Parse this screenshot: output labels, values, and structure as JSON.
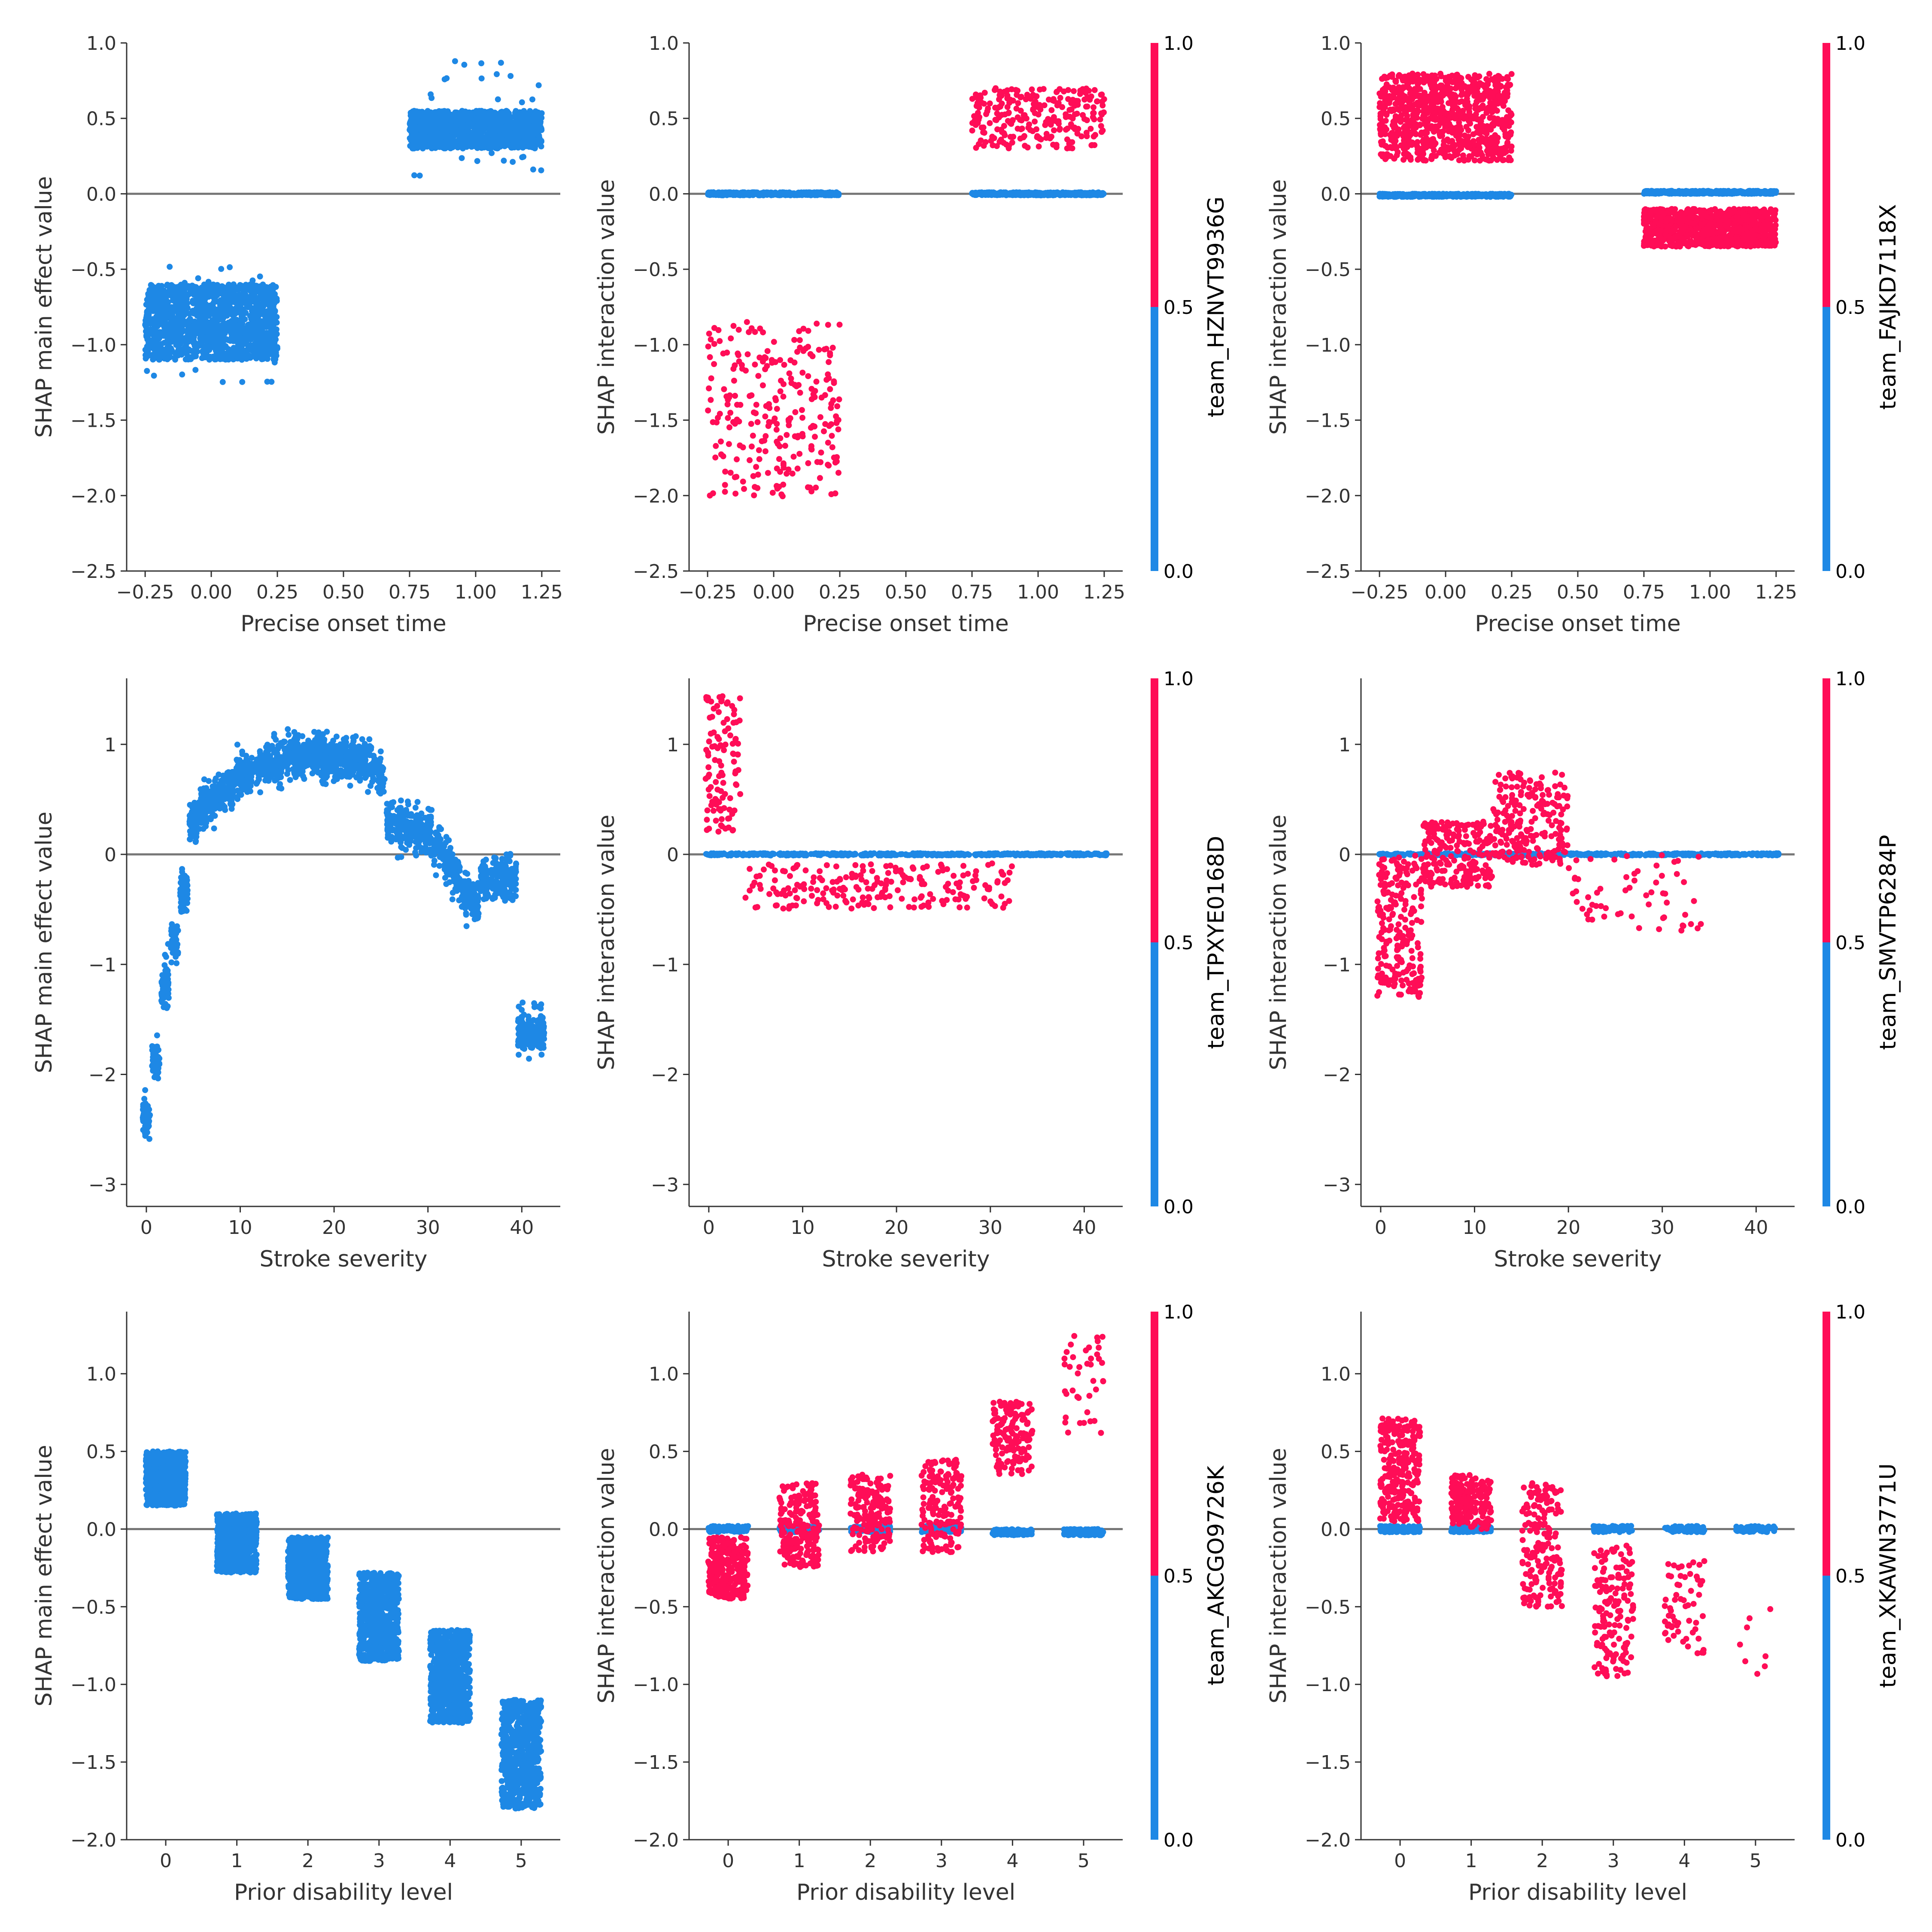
{
  "colors": {
    "low": "#1E88E5",
    "high": "#FF0D57",
    "zero_line": "#777777",
    "spine": "#333333"
  },
  "chart_data": [
    {
      "type": "scatter",
      "xlabel": "Precise onset time",
      "ylabel": "SHAP main effect value",
      "xlim": [
        -0.32,
        1.32
      ],
      "ylim": [
        -2.5,
        1.0
      ],
      "xticks": [
        -0.25,
        0.0,
        0.25,
        0.5,
        0.75,
        1.0,
        1.25
      ],
      "xtick_labels": [
        "−0.25",
        "0.00",
        "0.25",
        "0.50",
        "0.75",
        "1.00",
        "1.25"
      ],
      "yticks": [
        -2.5,
        -2.0,
        -1.5,
        -1.0,
        -0.5,
        0.0,
        0.5,
        1.0
      ],
      "ytick_labels": [
        "−2.5",
        "−2.0",
        "−1.5",
        "−1.0",
        "−0.5",
        "0.0",
        "0.5",
        "1.0"
      ],
      "colorbar": null,
      "clusters": [
        {
          "x": [
            -0.25,
            0.25
          ],
          "y": [
            -1.1,
            -0.6
          ],
          "color": "low",
          "n": 1400
        },
        {
          "x": [
            -0.25,
            0.25
          ],
          "y": [
            -1.25,
            -0.48
          ],
          "color": "low",
          "n": 60
        },
        {
          "x": [
            0.75,
            1.25
          ],
          "y": [
            0.3,
            0.55
          ],
          "color": "low",
          "n": 1200
        },
        {
          "x": [
            0.75,
            1.25
          ],
          "y": [
            0.12,
            0.88
          ],
          "color": "low",
          "n": 40
        }
      ]
    },
    {
      "type": "scatter",
      "xlabel": "Precise onset time",
      "ylabel": "SHAP interaction value",
      "xlim": [
        -0.32,
        1.32
      ],
      "ylim": [
        -2.5,
        1.0
      ],
      "xticks": [
        -0.25,
        0.0,
        0.25,
        0.5,
        0.75,
        1.0,
        1.25
      ],
      "xtick_labels": [
        "−0.25",
        "0.00",
        "0.25",
        "0.50",
        "0.75",
        "1.00",
        "1.25"
      ],
      "yticks": [
        -2.5,
        -2.0,
        -1.5,
        -1.0,
        -0.5,
        0.0,
        0.5,
        1.0
      ],
      "ytick_labels": [
        "−2.5",
        "−2.0",
        "−1.5",
        "−1.0",
        "−0.5",
        "0.0",
        "0.5",
        "1.0"
      ],
      "colorbar": {
        "label": "team_HZNVT9936G",
        "ticks": [
          "0.0",
          "0.5",
          "1.0"
        ]
      },
      "clusters": [
        {
          "x": [
            -0.25,
            0.25
          ],
          "y": [
            -0.01,
            0.01
          ],
          "color": "low",
          "n": 400
        },
        {
          "x": [
            0.75,
            1.25
          ],
          "y": [
            -0.01,
            0.01
          ],
          "color": "low",
          "n": 400
        },
        {
          "x": [
            -0.25,
            0.25
          ],
          "y": [
            -2.02,
            -0.85
          ],
          "color": "high",
          "n": 260
        },
        {
          "x": [
            0.75,
            1.25
          ],
          "y": [
            0.3,
            0.7
          ],
          "color": "high",
          "n": 260
        }
      ]
    },
    {
      "type": "scatter",
      "xlabel": "Precise onset time",
      "ylabel": "SHAP interaction value",
      "xlim": [
        -0.32,
        1.32
      ],
      "ylim": [
        -2.5,
        1.0
      ],
      "xticks": [
        -0.25,
        0.0,
        0.25,
        0.5,
        0.75,
        1.0,
        1.25
      ],
      "xtick_labels": [
        "−0.25",
        "0.00",
        "0.25",
        "0.50",
        "0.75",
        "1.00",
        "1.25"
      ],
      "yticks": [
        -2.5,
        -2.0,
        -1.5,
        -1.0,
        -0.5,
        0.0,
        0.5,
        1.0
      ],
      "ytick_labels": [
        "−2.5",
        "−2.0",
        "−1.5",
        "−1.0",
        "−0.5",
        "0.0",
        "0.5",
        "1.0"
      ],
      "colorbar": {
        "label": "team_FAJKD7118X",
        "ticks": [
          "0.0",
          "0.5",
          "1.0"
        ]
      },
      "clusters": [
        {
          "x": [
            -0.25,
            0.25
          ],
          "y": [
            -0.02,
            0.0
          ],
          "color": "low",
          "n": 400
        },
        {
          "x": [
            0.75,
            1.25
          ],
          "y": [
            0.0,
            0.02
          ],
          "color": "low",
          "n": 400
        },
        {
          "x": [
            -0.25,
            0.25
          ],
          "y": [
            0.22,
            0.8
          ],
          "color": "high",
          "n": 900
        },
        {
          "x": [
            0.75,
            1.25
          ],
          "y": [
            -0.35,
            -0.1
          ],
          "color": "high",
          "n": 900
        }
      ]
    },
    {
      "type": "scatter",
      "xlabel": "Stroke severity",
      "ylabel": "SHAP main effect value",
      "xlim": [
        -2.1,
        44.1
      ],
      "ylim": [
        -3.2,
        1.6
      ],
      "xticks": [
        0,
        10,
        20,
        30,
        40
      ],
      "xtick_labels": [
        "0",
        "10",
        "20",
        "30",
        "40"
      ],
      "yticks": [
        -3,
        -2,
        -1,
        0,
        1
      ],
      "ytick_labels": [
        "−3",
        "−2",
        "−1",
        "0",
        "1"
      ],
      "colorbar": null,
      "curve": {
        "x": [
          0,
          1,
          2,
          3,
          4,
          5,
          6,
          8,
          10,
          12,
          14,
          16,
          18,
          20,
          22,
          24,
          25,
          26,
          28,
          30,
          32,
          33,
          34,
          35,
          36,
          38,
          39,
          40,
          41,
          42
        ],
        "y": [
          -2.4,
          -1.9,
          -1.2,
          -0.8,
          -0.35,
          0.3,
          0.45,
          0.55,
          0.7,
          0.78,
          0.85,
          0.88,
          0.9,
          0.88,
          0.85,
          0.8,
          0.7,
          0.3,
          0.25,
          0.2,
          -0.05,
          -0.2,
          -0.4,
          -0.45,
          -0.25,
          -0.2,
          -0.2,
          -1.6,
          -1.6,
          -1.6
        ],
        "spread": 0.15,
        "color": "low",
        "n": 2600
      }
    },
    {
      "type": "scatter",
      "xlabel": "Stroke severity",
      "ylabel": "SHAP interaction value",
      "xlim": [
        -2.1,
        44.1
      ],
      "ylim": [
        -3.2,
        1.6
      ],
      "xticks": [
        0,
        10,
        20,
        30,
        40
      ],
      "xtick_labels": [
        "0",
        "10",
        "20",
        "30",
        "40"
      ],
      "yticks": [
        -3,
        -2,
        -1,
        0,
        1
      ],
      "ytick_labels": [
        "−3",
        "−2",
        "−1",
        "0",
        "1"
      ],
      "colorbar": {
        "label": "team_TPXYE0168D",
        "ticks": [
          "0.0",
          "0.5",
          "1.0"
        ]
      },
      "clusters": [
        {
          "x": [
            -0.4,
            42.4
          ],
          "y": [
            -0.01,
            0.01
          ],
          "color": "low",
          "n": 500
        },
        {
          "x": [
            -0.4,
            3.4
          ],
          "y": [
            0.2,
            1.45
          ],
          "color": "high",
          "n": 110
        },
        {
          "x": [
            3.6,
            32.4
          ],
          "y": [
            -0.5,
            -0.08
          ],
          "color": "high",
          "n": 220
        }
      ]
    },
    {
      "type": "scatter",
      "xlabel": "Stroke severity",
      "ylabel": "SHAP interaction value",
      "xlim": [
        -2.1,
        44.1
      ],
      "ylim": [
        -3.2,
        1.6
      ],
      "xticks": [
        0,
        10,
        20,
        30,
        40
      ],
      "xtick_labels": [
        "0",
        "10",
        "20",
        "30",
        "40"
      ],
      "yticks": [
        -3,
        -2,
        -1,
        0,
        1
      ],
      "ytick_labels": [
        "−3",
        "−2",
        "−1",
        "0",
        "1"
      ],
      "colorbar": {
        "label": "team_SMVTP6284P",
        "ticks": [
          "0.0",
          "0.5",
          "1.0"
        ]
      },
      "clusters": [
        {
          "x": [
            -0.4,
            42.4
          ],
          "y": [
            -0.01,
            0.01
          ],
          "color": "low",
          "n": 500
        },
        {
          "x": [
            -0.4,
            4.4
          ],
          "y": [
            -1.3,
            0.0
          ],
          "color": "high",
          "n": 220
        },
        {
          "x": [
            4.5,
            12.0
          ],
          "y": [
            -0.3,
            0.3
          ],
          "color": "high",
          "n": 220
        },
        {
          "x": [
            12.0,
            20.0
          ],
          "y": [
            -0.1,
            0.75
          ],
          "color": "high",
          "n": 220
        },
        {
          "x": [
            20.0,
            34.5
          ],
          "y": [
            -0.7,
            0.0
          ],
          "color": "high",
          "n": 60
        }
      ]
    },
    {
      "type": "scatter",
      "xlabel": "Prior disability level",
      "ylabel": "SHAP main effect value",
      "xlim": [
        -0.55,
        5.55
      ],
      "ylim": [
        -2.0,
        1.4
      ],
      "xticks": [
        0,
        1,
        2,
        3,
        4,
        5
      ],
      "xtick_labels": [
        "0",
        "1",
        "2",
        "3",
        "4",
        "5"
      ],
      "yticks": [
        -2.0,
        -1.5,
        -1.0,
        -0.5,
        0.0,
        0.5,
        1.0
      ],
      "ytick_labels": [
        "−2.0",
        "−1.5",
        "−1.0",
        "−0.5",
        "0.0",
        "0.5",
        "1.0"
      ],
      "colorbar": null,
      "clusters": [
        {
          "x": [
            -0.28,
            0.28
          ],
          "y": [
            0.15,
            0.5
          ],
          "color": "low",
          "n": 700
        },
        {
          "x": [
            0.72,
            1.28
          ],
          "y": [
            -0.28,
            0.1
          ],
          "color": "low",
          "n": 700
        },
        {
          "x": [
            1.72,
            2.28
          ],
          "y": [
            -0.45,
            -0.05
          ],
          "color": "low",
          "n": 700
        },
        {
          "x": [
            2.72,
            3.28
          ],
          "y": [
            -0.85,
            -0.28
          ],
          "color": "low",
          "n": 700
        },
        {
          "x": [
            3.72,
            4.28
          ],
          "y": [
            -1.25,
            -0.65
          ],
          "color": "low",
          "n": 700
        },
        {
          "x": [
            4.72,
            5.28
          ],
          "y": [
            -1.8,
            -1.1
          ],
          "color": "low",
          "n": 700
        }
      ]
    },
    {
      "type": "scatter",
      "xlabel": "Prior disability level",
      "ylabel": "SHAP interaction value",
      "xlim": [
        -0.55,
        5.55
      ],
      "ylim": [
        -2.0,
        1.4
      ],
      "xticks": [
        0,
        1,
        2,
        3,
        4,
        5
      ],
      "xtick_labels": [
        "0",
        "1",
        "2",
        "3",
        "4",
        "5"
      ],
      "yticks": [
        -2.0,
        -1.5,
        -1.0,
        -0.5,
        0.0,
        0.5,
        1.0
      ],
      "ytick_labels": [
        "−2.0",
        "−1.5",
        "−1.0",
        "−0.5",
        "0.0",
        "0.5",
        "1.0"
      ],
      "colorbar": {
        "label": "team_AKCGO9726K",
        "ticks": [
          "0.0",
          "0.5",
          "1.0"
        ]
      },
      "clusters": [
        {
          "x": [
            -0.28,
            0.28
          ],
          "y": [
            -0.02,
            0.02
          ],
          "color": "low",
          "n": 120
        },
        {
          "x": [
            0.72,
            1.28
          ],
          "y": [
            -0.02,
            0.02
          ],
          "color": "low",
          "n": 120
        },
        {
          "x": [
            1.72,
            2.28
          ],
          "y": [
            -0.02,
            0.02
          ],
          "color": "low",
          "n": 120
        },
        {
          "x": [
            2.72,
            3.28
          ],
          "y": [
            -0.02,
            0.02
          ],
          "color": "low",
          "n": 120
        },
        {
          "x": [
            3.72,
            4.28
          ],
          "y": [
            -0.04,
            0.0
          ],
          "color": "low",
          "n": 120
        },
        {
          "x": [
            4.72,
            5.28
          ],
          "y": [
            -0.04,
            0.0
          ],
          "color": "low",
          "n": 120
        },
        {
          "x": [
            -0.28,
            0.28
          ],
          "y": [
            -0.45,
            -0.05
          ],
          "color": "high",
          "n": 260
        },
        {
          "x": [
            0.72,
            1.28
          ],
          "y": [
            -0.25,
            0.3
          ],
          "color": "high",
          "n": 220
        },
        {
          "x": [
            1.72,
            2.28
          ],
          "y": [
            -0.15,
            0.35
          ],
          "color": "high",
          "n": 180
        },
        {
          "x": [
            2.72,
            3.28
          ],
          "y": [
            -0.15,
            0.45
          ],
          "color": "high",
          "n": 180
        },
        {
          "x": [
            3.72,
            4.28
          ],
          "y": [
            0.35,
            0.82
          ],
          "color": "high",
          "n": 150
        },
        {
          "x": [
            4.72,
            5.28
          ],
          "y": [
            0.6,
            1.25
          ],
          "color": "high",
          "n": 40
        }
      ]
    },
    {
      "type": "scatter",
      "xlabel": "Prior disability level",
      "ylabel": "SHAP interaction value",
      "xlim": [
        -0.55,
        5.55
      ],
      "ylim": [
        -2.0,
        1.4
      ],
      "xticks": [
        0,
        1,
        2,
        3,
        4,
        5
      ],
      "xtick_labels": [
        "0",
        "1",
        "2",
        "3",
        "4",
        "5"
      ],
      "yticks": [
        -2.0,
        -1.5,
        -1.0,
        -0.5,
        0.0,
        0.5,
        1.0
      ],
      "ytick_labels": [
        "−2.0",
        "−1.5",
        "−1.0",
        "−0.5",
        "0.0",
        "0.5",
        "1.0"
      ],
      "colorbar": {
        "label": "team_XKAWN3771U",
        "ticks": [
          "0.0",
          "0.5",
          "1.0"
        ]
      },
      "clusters": [
        {
          "x": [
            -0.28,
            0.28
          ],
          "y": [
            -0.02,
            0.02
          ],
          "color": "low",
          "n": 120
        },
        {
          "x": [
            0.72,
            1.28
          ],
          "y": [
            -0.02,
            0.02
          ],
          "color": "low",
          "n": 120
        },
        {
          "x": [
            2.72,
            3.28
          ],
          "y": [
            -0.02,
            0.02
          ],
          "color": "low",
          "n": 60
        },
        {
          "x": [
            3.72,
            4.28
          ],
          "y": [
            -0.02,
            0.02
          ],
          "color": "low",
          "n": 60
        },
        {
          "x": [
            4.72,
            5.28
          ],
          "y": [
            -0.02,
            0.02
          ],
          "color": "low",
          "n": 60
        },
        {
          "x": [
            -0.28,
            0.28
          ],
          "y": [
            0.05,
            0.72
          ],
          "color": "high",
          "n": 260
        },
        {
          "x": [
            0.72,
            1.28
          ],
          "y": [
            0.0,
            0.35
          ],
          "color": "high",
          "n": 200
        },
        {
          "x": [
            1.72,
            2.28
          ],
          "y": [
            -0.5,
            0.3
          ],
          "color": "high",
          "n": 180
        },
        {
          "x": [
            2.72,
            3.28
          ],
          "y": [
            -0.95,
            -0.1
          ],
          "color": "high",
          "n": 150
        },
        {
          "x": [
            3.72,
            4.28
          ],
          "y": [
            -0.8,
            -0.2
          ],
          "color": "high",
          "n": 60
        },
        {
          "x": [
            4.72,
            5.28
          ],
          "y": [
            -0.95,
            -0.4
          ],
          "color": "high",
          "n": 8
        }
      ]
    }
  ]
}
